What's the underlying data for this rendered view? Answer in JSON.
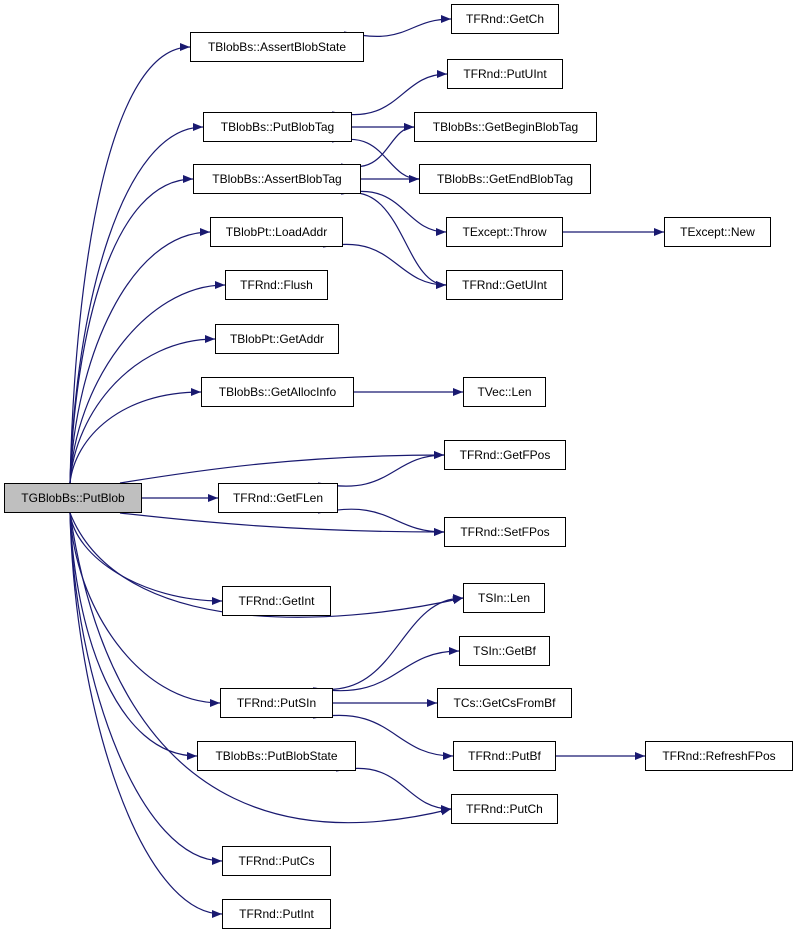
{
  "colors": {
    "edge": "#191970",
    "root_fill": "#bfbfbf",
    "node_fill": "#ffffff",
    "border": "#000000"
  },
  "nodes": [
    {
      "id": "root",
      "label": "TGBlobBs::PutBlob",
      "root": true
    },
    {
      "id": "assertBlobState",
      "label": "TBlobBs::AssertBlobState"
    },
    {
      "id": "getCh",
      "label": "TFRnd::GetCh"
    },
    {
      "id": "putUInt",
      "label": "TFRnd::PutUInt"
    },
    {
      "id": "putBlobTag",
      "label": "TBlobBs::PutBlobTag"
    },
    {
      "id": "getBeginBlobTag",
      "label": "TBlobBs::GetBeginBlobTag"
    },
    {
      "id": "assertBlobTag",
      "label": "TBlobBs::AssertBlobTag"
    },
    {
      "id": "getEndBlobTag",
      "label": "TBlobBs::GetEndBlobTag"
    },
    {
      "id": "throw",
      "label": "TExcept::Throw"
    },
    {
      "id": "new",
      "label": "TExcept::New"
    },
    {
      "id": "loadAddr",
      "label": "TBlobPt::LoadAddr"
    },
    {
      "id": "getUInt",
      "label": "TFRnd::GetUInt"
    },
    {
      "id": "flush",
      "label": "TFRnd::Flush"
    },
    {
      "id": "getAddr",
      "label": "TBlobPt::GetAddr"
    },
    {
      "id": "getAllocInfo",
      "label": "TBlobBs::GetAllocInfo"
    },
    {
      "id": "vecLen",
      "label": "TVec::Len"
    },
    {
      "id": "getFPos",
      "label": "TFRnd::GetFPos"
    },
    {
      "id": "getFLen",
      "label": "TFRnd::GetFLen"
    },
    {
      "id": "setFPos",
      "label": "TFRnd::SetFPos"
    },
    {
      "id": "getInt",
      "label": "TFRnd::GetInt"
    },
    {
      "id": "sinLen",
      "label": "TSIn::Len"
    },
    {
      "id": "getBf",
      "label": "TSIn::GetBf"
    },
    {
      "id": "putSIn",
      "label": "TFRnd::PutSIn"
    },
    {
      "id": "getCsFromBf",
      "label": "TCs::GetCsFromBf"
    },
    {
      "id": "putBlobState",
      "label": "TBlobBs::PutBlobState"
    },
    {
      "id": "putBf",
      "label": "TFRnd::PutBf"
    },
    {
      "id": "refreshFPos",
      "label": "TFRnd::RefreshFPos"
    },
    {
      "id": "putCh",
      "label": "TFRnd::PutCh"
    },
    {
      "id": "putCs",
      "label": "TFRnd::PutCs"
    },
    {
      "id": "putInt",
      "label": "TFRnd::PutInt"
    }
  ],
  "edges": [
    [
      "root",
      "assertBlobState"
    ],
    [
      "root",
      "putBlobTag"
    ],
    [
      "root",
      "assertBlobTag"
    ],
    [
      "root",
      "loadAddr"
    ],
    [
      "root",
      "flush"
    ],
    [
      "root",
      "getAddr"
    ],
    [
      "root",
      "getAllocInfo"
    ],
    [
      "root",
      "getFPos"
    ],
    [
      "root",
      "getFLen"
    ],
    [
      "root",
      "setFPos"
    ],
    [
      "root",
      "getInt"
    ],
    [
      "root",
      "sinLen"
    ],
    [
      "root",
      "putSIn"
    ],
    [
      "root",
      "putBlobState"
    ],
    [
      "root",
      "putCh"
    ],
    [
      "root",
      "putCs"
    ],
    [
      "root",
      "putInt"
    ],
    [
      "assertBlobState",
      "getCh"
    ],
    [
      "putBlobTag",
      "putUInt"
    ],
    [
      "putBlobTag",
      "getBeginBlobTag"
    ],
    [
      "putBlobTag",
      "getEndBlobTag"
    ],
    [
      "assertBlobTag",
      "getBeginBlobTag"
    ],
    [
      "assertBlobTag",
      "getEndBlobTag"
    ],
    [
      "assertBlobTag",
      "throw"
    ],
    [
      "assertBlobTag",
      "getUInt"
    ],
    [
      "throw",
      "new"
    ],
    [
      "loadAddr",
      "getUInt"
    ],
    [
      "getAllocInfo",
      "vecLen"
    ],
    [
      "getFLen",
      "getFPos"
    ],
    [
      "getFLen",
      "setFPos"
    ],
    [
      "putSIn",
      "sinLen"
    ],
    [
      "putSIn",
      "getBf"
    ],
    [
      "putSIn",
      "getCsFromBf"
    ],
    [
      "putSIn",
      "putBf"
    ],
    [
      "putBf",
      "refreshFPos"
    ],
    [
      "putBlobState",
      "putCh"
    ]
  ]
}
